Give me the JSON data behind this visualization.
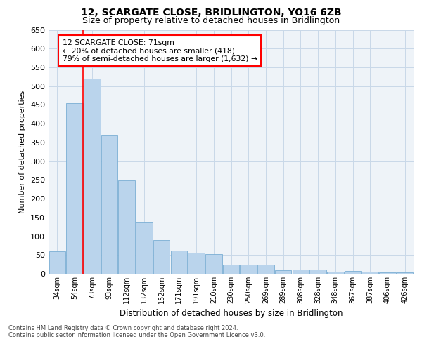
{
  "title": "12, SCARGATE CLOSE, BRIDLINGTON, YO16 6ZB",
  "subtitle": "Size of property relative to detached houses in Bridlington",
  "xlabel": "Distribution of detached houses by size in Bridlington",
  "ylabel": "Number of detached properties",
  "bar_color": "#bad4ec",
  "bar_edge_color": "#7aaed4",
  "grid_color": "#c8d8e8",
  "background_color": "#eef3f8",
  "annotation_text": "12 SCARGATE CLOSE: 71sqm\n← 20% of detached houses are smaller (418)\n79% of semi-detached houses are larger (1,632) →",
  "annotation_box_color": "white",
  "annotation_box_edge": "red",
  "categories": [
    "34sqm",
    "54sqm",
    "73sqm",
    "93sqm",
    "112sqm",
    "132sqm",
    "152sqm",
    "171sqm",
    "191sqm",
    "210sqm",
    "230sqm",
    "250sqm",
    "269sqm",
    "289sqm",
    "308sqm",
    "328sqm",
    "348sqm",
    "367sqm",
    "387sqm",
    "406sqm",
    "426sqm"
  ],
  "values": [
    60,
    455,
    520,
    368,
    248,
    138,
    90,
    62,
    57,
    53,
    25,
    25,
    25,
    10,
    12,
    12,
    6,
    8,
    5,
    4,
    3
  ],
  "ylim": [
    0,
    650
  ],
  "yticks": [
    0,
    50,
    100,
    150,
    200,
    250,
    300,
    350,
    400,
    450,
    500,
    550,
    600,
    650
  ],
  "redline_xindex": 1.5,
  "footer_line1": "Contains HM Land Registry data © Crown copyright and database right 2024.",
  "footer_line2": "Contains public sector information licensed under the Open Government Licence v3.0."
}
